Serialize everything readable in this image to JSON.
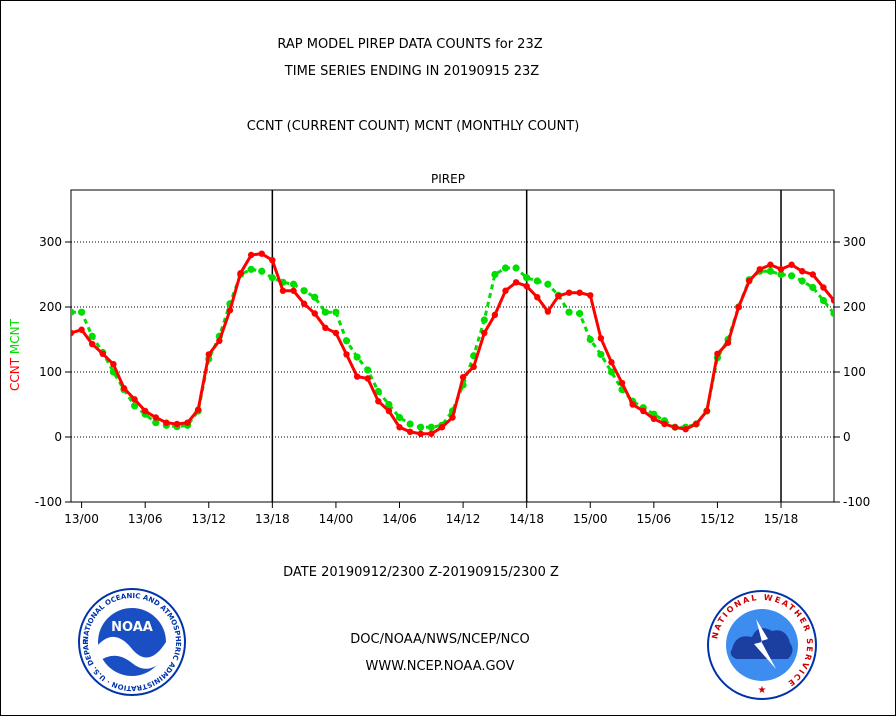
{
  "header": {
    "title_line1": "RAP MODEL PIREP DATA COUNTS for 23Z",
    "title_line2": "TIME SERIES ENDING IN 20190915 23Z",
    "subtitle": "CCNT (CURRENT COUNT) MCNT (MONTHLY COUNT)"
  },
  "footer": {
    "date_range": "DATE 20190912/2300 Z-20190915/2300 Z",
    "org_line": "DOC/NOAA/NWS/NCEP/NCO",
    "url_line": "WWW.NCEP.NOAA.GOV"
  },
  "logos": {
    "noaa_text": "NOAA",
    "noaa_ring": "NATIONAL OCEANIC AND ATMOSPHERIC ADMINISTRATION · U.S. DEPARTMENT OF COMMERCE",
    "nws_ring": "NATIONAL WEATHER SERVICE"
  },
  "colors": {
    "ccnt": "#ff0000",
    "mcnt": "#00dd00",
    "title_blue": "#0000cc",
    "date_red": "#ff0000"
  },
  "chart_data": {
    "type": "line",
    "title": "PIREP",
    "ylabel_ccnt": "CCNT",
    "ylabel_mcnt": "MCNT",
    "ylim": [
      -100,
      380
    ],
    "yticks": [
      -100,
      0,
      100,
      200,
      300
    ],
    "grid": true,
    "x_unit": "hours since 13/00",
    "xlim": [
      -1,
      71
    ],
    "xticks": [
      {
        "x": 0,
        "label": "13/00"
      },
      {
        "x": 6,
        "label": "13/06"
      },
      {
        "x": 12,
        "label": "13/12"
      },
      {
        "x": 18,
        "label": "13/18"
      },
      {
        "x": 24,
        "label": "14/00"
      },
      {
        "x": 30,
        "label": "14/06"
      },
      {
        "x": 36,
        "label": "14/12"
      },
      {
        "x": 42,
        "label": "14/18"
      },
      {
        "x": 48,
        "label": "15/00"
      },
      {
        "x": 54,
        "label": "15/06"
      },
      {
        "x": 60,
        "label": "15/12"
      },
      {
        "x": 66,
        "label": "15/18"
      }
    ],
    "day_dividers": [
      18,
      42,
      66
    ],
    "x": [
      -1,
      0,
      1,
      2,
      3,
      4,
      5,
      6,
      7,
      8,
      9,
      10,
      11,
      12,
      13,
      14,
      15,
      16,
      17,
      18,
      19,
      20,
      21,
      22,
      23,
      24,
      25,
      26,
      27,
      28,
      29,
      30,
      31,
      32,
      33,
      34,
      35,
      36,
      37,
      38,
      39,
      40,
      41,
      42,
      43,
      44,
      45,
      46,
      47,
      48,
      49,
      50,
      51,
      52,
      53,
      54,
      55,
      56,
      57,
      58,
      59,
      60,
      61,
      62,
      63,
      64,
      65,
      66,
      67,
      68,
      69,
      70,
      71
    ],
    "series": [
      {
        "name": "CCNT",
        "color": "#ff0000",
        "values": [
          160,
          165,
          143,
          128,
          112,
          75,
          58,
          40,
          30,
          22,
          20,
          22,
          42,
          127,
          148,
          195,
          252,
          280,
          282,
          272,
          225,
          225,
          205,
          190,
          168,
          160,
          127,
          93,
          90,
          55,
          40,
          15,
          8,
          5,
          5,
          15,
          30,
          92,
          108,
          160,
          188,
          225,
          238,
          232,
          215,
          193,
          217,
          222,
          222,
          218,
          152,
          115,
          83,
          50,
          40,
          28,
          20,
          15,
          12,
          20,
          40,
          128,
          145,
          200,
          240,
          258,
          265,
          258,
          265,
          255,
          250,
          230,
          210
        ]
      },
      {
        "name": "MCNT",
        "color": "#00dd00",
        "values": [
          192,
          192,
          155,
          130,
          100,
          73,
          48,
          35,
          22,
          18,
          16,
          18,
          40,
          120,
          155,
          205,
          250,
          258,
          255,
          245,
          238,
          235,
          225,
          215,
          192,
          192,
          148,
          123,
          103,
          70,
          50,
          30,
          20,
          15,
          15,
          18,
          40,
          80,
          125,
          180,
          250,
          260,
          260,
          245,
          240,
          235,
          218,
          192,
          190,
          150,
          127,
          100,
          73,
          55,
          45,
          35,
          25,
          15,
          15,
          20,
          40,
          122,
          150,
          200,
          242,
          255,
          255,
          250,
          248,
          240,
          230,
          210,
          190
        ]
      }
    ]
  }
}
